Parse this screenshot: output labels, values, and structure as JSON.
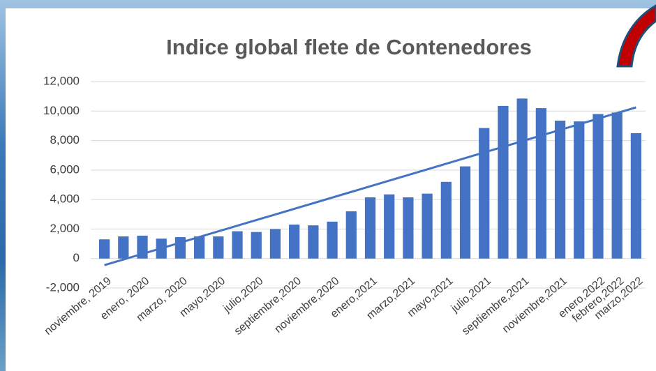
{
  "chart_data": {
    "type": "bar",
    "title": "Indice global  flete de Contenedores",
    "categories": [
      "noviembre, 2019",
      null,
      "enero, 2020",
      null,
      "marzo, 2020",
      null,
      "mayo,2020",
      null,
      "julio,2020",
      null,
      "septiembre,2020",
      null,
      "noviembre,2020",
      null,
      "enero,2021",
      null,
      "marzo,2021",
      null,
      "mayo,2021",
      null,
      "julio,2021",
      null,
      "septiembre,2021",
      null,
      "noviembre,2021",
      null,
      "enero,2022",
      "febrero,2022",
      "marzo,2022"
    ],
    "values": [
      1300,
      1500,
      1550,
      1350,
      1450,
      1500,
      1500,
      1850,
      1800,
      2000,
      2300,
      2250,
      2500,
      3200,
      4150,
      4350,
      4150,
      4400,
      5200,
      6250,
      8850,
      10350,
      10850,
      10200,
      9350,
      9300,
      9800,
      9900,
      8500
    ],
    "color": "#4472c4",
    "trendline": {
      "color": "#4472c4",
      "values": [
        -450,
        10250
      ]
    },
    "ylim": [
      -2000,
      12000
    ],
    "yticks": [
      {
        "value": -2000,
        "label": "-2,000"
      },
      0,
      {
        "value": 2000,
        "label": "2,000"
      },
      {
        "value": 4000,
        "label": "4,000"
      },
      {
        "value": 6000,
        "label": "6,000"
      },
      {
        "value": 8000,
        "label": "8,000"
      },
      {
        "value": 10000,
        "label": "10,000"
      },
      {
        "value": 12000,
        "label": "12,000"
      }
    ],
    "grid": true
  }
}
